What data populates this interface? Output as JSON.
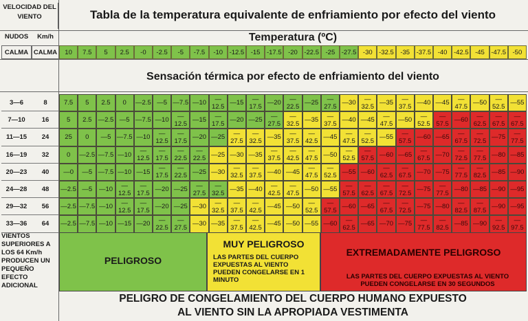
{
  "header": {
    "velocidad": "VELOCIDAD DEL VIENTO",
    "title": "Tabla de la temperatura equivalente de enfriamiento por efecto del viento",
    "nudos": "NUDOS",
    "kmh": "Km/h",
    "temperatura": "Temperatura (ºC)"
  },
  "calma": {
    "nudos": "CALMA",
    "kmh": "CALMA",
    "temps": [
      "10",
      "7.5",
      "5",
      "2.5",
      "-0",
      "-2.5",
      "-5",
      "-7.5",
      "-10",
      "-12.5",
      "-15",
      "-17.5",
      "-20",
      "-22.5",
      "-25",
      "-27.5",
      "-30",
      "-32.5",
      "-35",
      "-37.5",
      "-40",
      "-42.5",
      "-45",
      "-47.5",
      "-50"
    ]
  },
  "sensacion_title": "Sensación térmica por efecto de enfriamiento del viento",
  "rows": [
    {
      "nudos": "3—6",
      "kmh": "8",
      "values": [
        "7.5",
        "5",
        "2.5",
        "0",
        "—2.5",
        "—5",
        "—7.5",
        "—10",
        "—12.5",
        "—15",
        "—17.5",
        "—20",
        "—22.5",
        "—25",
        "—27.5",
        "—30",
        "—32.5",
        "—35",
        "—37.5",
        "—40",
        "—45",
        "—47.5",
        "—50",
        "—52.5",
        "—55"
      ],
      "colors": "gggggggggggggggyyyyyyyyyy"
    },
    {
      "nudos": "7—10",
      "kmh": "16",
      "values": [
        "5",
        "2.5",
        "—2.5",
        "—5",
        "—7.5",
        "—10",
        "—12.5",
        "—15",
        "—17.5",
        "—20",
        "—25",
        "—27.5",
        "—32.5",
        "—35",
        "—37.5",
        "—40",
        "—45",
        "—47.5",
        "—50",
        "—52.5",
        "—57.5",
        "—60",
        "—62.5",
        "—67.5",
        "—67.5"
      ],
      "colors": "ggggggggggggyyyyyyyyrrrrr"
    },
    {
      "nudos": "11—15",
      "kmh": "24",
      "values": [
        "25",
        "0",
        "—5",
        "—7.5",
        "—10",
        "—12.5",
        "—17.5",
        "—20",
        "—25",
        "—27.5",
        "—32.5",
        "—35",
        "—37.5",
        "—42.5",
        "—45",
        "—47.5",
        "—52.5",
        "—55",
        "—57.5",
        "—60",
        "—65",
        "—67.5",
        "—72.5",
        "—75",
        "—77.5"
      ],
      "colors": "gggggggggyyyyyyyyyrrrrrrr"
    },
    {
      "nudos": "16—19",
      "kmh": "32",
      "values": [
        "0",
        "—2.5",
        "—7.5",
        "—10",
        "—12.5",
        "—17.5",
        "—22.5",
        "—22.5",
        "—25",
        "—30",
        "—35",
        "—37.5",
        "—42.5",
        "—47.5",
        "—50",
        "—52.5",
        "—57.5",
        "—60",
        "—65",
        "—67.5",
        "—70",
        "—72.5",
        "—77.5",
        "—80",
        "—85"
      ],
      "colors": "ggggggggyyyyyyyyrrrrrrrrr"
    },
    {
      "nudos": "20—23",
      "kmh": "40",
      "values": [
        "—0",
        "—5",
        "—7.5",
        "—10",
        "—15",
        "—17.5",
        "—22.5",
        "—25",
        "—30",
        "—32.5",
        "—37.5",
        "—40",
        "—45",
        "—47.5",
        "—52.5",
        "—55",
        "—60",
        "—62.5",
        "—67.5",
        "—70",
        "—75",
        "—77.5",
        "—82.5",
        "—85",
        "—90"
      ],
      "colors": "ggggggggyyyyyyyrrrrrrrrrr"
    },
    {
      "nudos": "24—28",
      "kmh": "48",
      "values": [
        "—2.5",
        "—5",
        "—10",
        "—12.5",
        "—17.5",
        "—20",
        "—25",
        "—27.5",
        "—32.5",
        "—35",
        "—40",
        "—42.5",
        "—47.5",
        "—50",
        "—55",
        "—57.5",
        "—62.5",
        "—67.5",
        "—72.5",
        "—75",
        "—77.5",
        "—80",
        "—85",
        "—90",
        "—95"
      ],
      "colors": "gggggggggyyyyyyrrrrrrrrrr"
    },
    {
      "nudos": "29—32",
      "kmh": "56",
      "values": [
        "—2.5",
        "—7.5",
        "—10",
        "—12.5",
        "—17.5",
        "—20",
        "—25",
        "—30",
        "—32.5",
        "—37.5",
        "—42.5",
        "—45",
        "—50",
        "—52.5",
        "—57.5",
        "—60",
        "—65",
        "—67.5",
        "—72.5",
        "—75",
        "—80",
        "—82.5",
        "—87.5",
        "—90",
        "—95"
      ],
      "colors": "gggggggyyyyyyyrrrrrrrrrrr"
    },
    {
      "nudos": "33—36",
      "kmh": "64",
      "values": [
        "—2.5",
        "—7.5",
        "—10",
        "—15",
        "—20",
        "—22.5",
        "—27.5",
        "—30",
        "—35",
        "—37.5",
        "—42.5",
        "—45",
        "—50",
        "—55",
        "—60",
        "—62.5",
        "—65",
        "—70",
        "—75",
        "—77.5",
        "—82.5",
        "—85",
        "—90",
        "—92.5",
        "—97.5"
      ],
      "colors": "gggggggyyyyyyyrrrrrrrrrrr"
    }
  ],
  "footer": {
    "left_note": "VIENTOS SUPERIORES A LOS 64 Km/h PRODUCEN UN PEQUEÑO EFECTO ADICIONAL",
    "peligroso": "PELIGROSO",
    "muy_peligroso": "MUY PELIGROSO",
    "muy_desc": "LAS PARTES DEL CUERPO EXPUESTAS AL VIENTO PUEDEN CONGELARSE EN 1 MINUTO",
    "extremo": "EXTREMADAMENTE PELIGROSO",
    "extremo_desc": "LAS PARTES DEL CUERPO EXPUESTAS AL VIENTO PUEDEN CONGELARSE EN 30 SEGUNDOS",
    "bottom_line1": "PELIGRO DE CONGELAMIENTO DEL CUERPO HUMANO EXPUESTO",
    "bottom_line2": "AL VIENTO SIN LA APROPIADA VESTIMENTA"
  },
  "colors": {
    "green": "#7fc24a",
    "yellow": "#f2e135",
    "red": "#de2a2a"
  }
}
